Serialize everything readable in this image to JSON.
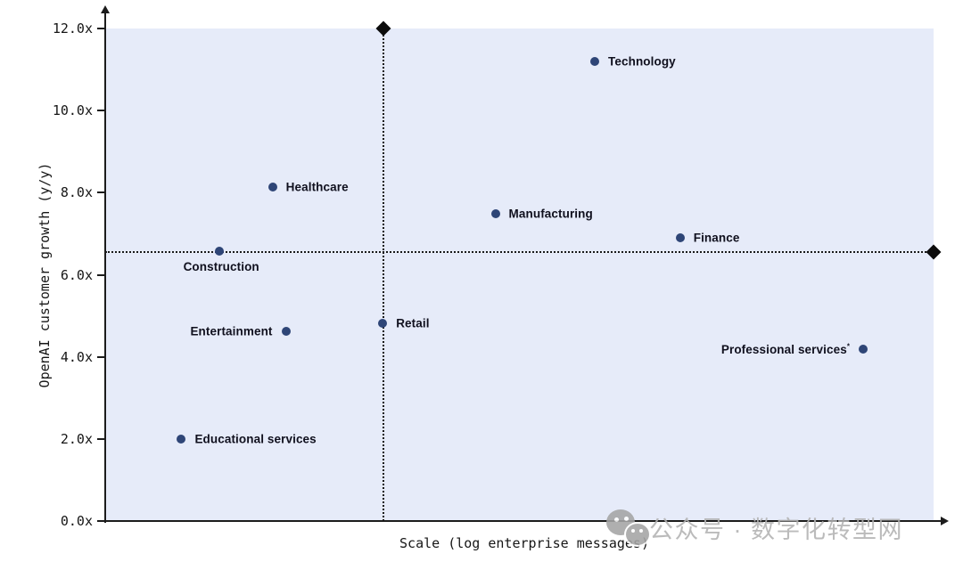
{
  "watermark": {
    "text": "公众号 · 数字化转型网",
    "icon": "wechat-logo",
    "color": "#b2b2b2"
  },
  "chart_data": {
    "type": "scatter",
    "title": "",
    "xlabel": "Scale (log enterprise messages)",
    "ylabel": "OpenAI customer growth (y/y)",
    "xlim": [
      0,
      1
    ],
    "ylim": [
      0,
      12
    ],
    "grid": false,
    "legend": "none",
    "plot_bg": "#e6ebf9",
    "point_color": "#2e4577",
    "marker_color": "#0c0c0c",
    "yticks": [
      {
        "value": 0,
        "label": "0.0x"
      },
      {
        "value": 2,
        "label": "2.0x"
      },
      {
        "value": 4,
        "label": "4.0x"
      },
      {
        "value": 6,
        "label": "6.0x"
      },
      {
        "value": 8,
        "label": "8.0x"
      },
      {
        "value": 10,
        "label": "10.0x"
      },
      {
        "value": 12,
        "label": "12.0x"
      }
    ],
    "points": [
      {
        "name": "Technology",
        "x": 0.591,
        "y": 11.2,
        "label_side": "right",
        "suffix": ""
      },
      {
        "name": "Healthcare",
        "x": 0.202,
        "y": 8.13,
        "label_side": "right",
        "suffix": ""
      },
      {
        "name": "Manufacturing",
        "x": 0.471,
        "y": 7.49,
        "label_side": "right",
        "suffix": ""
      },
      {
        "name": "Finance",
        "x": 0.694,
        "y": 6.9,
        "label_side": "right",
        "suffix": ""
      },
      {
        "name": "Construction",
        "x": 0.138,
        "y": 6.57,
        "label_side": "below",
        "suffix": ""
      },
      {
        "name": "Retail",
        "x": 0.335,
        "y": 4.82,
        "label_side": "right",
        "suffix": ""
      },
      {
        "name": "Entertainment",
        "x": 0.218,
        "y": 4.62,
        "label_side": "left",
        "suffix": ""
      },
      {
        "name": "Professional services",
        "x": 0.915,
        "y": 4.19,
        "label_side": "left",
        "suffix": "*"
      },
      {
        "name": "Educational services",
        "x": 0.092,
        "y": 1.99,
        "label_side": "right",
        "suffix": ""
      }
    ],
    "reference_lines": [
      {
        "orientation": "vertical",
        "x": 0.336,
        "style": "dotted",
        "marker_at": {
          "x": 0.336,
          "y": 12.0
        }
      },
      {
        "orientation": "horizontal",
        "y": 6.56,
        "style": "dotted",
        "marker_at": {
          "x": 1.0,
          "y": 6.56
        }
      }
    ]
  }
}
